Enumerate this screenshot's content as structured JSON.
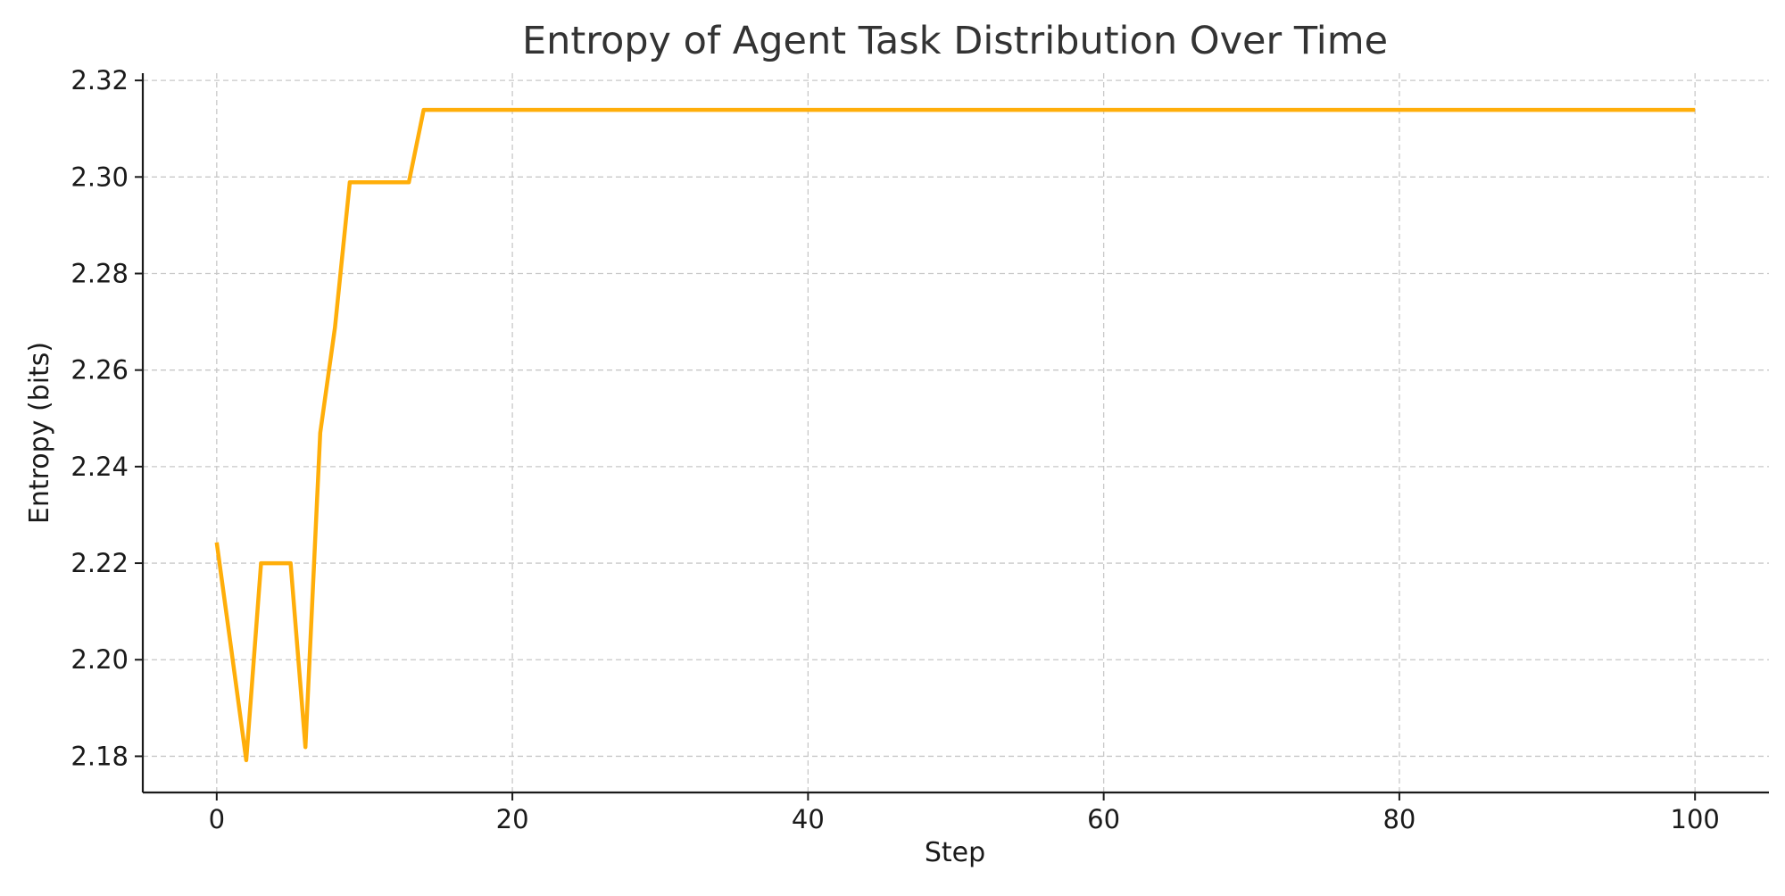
{
  "chart_data": {
    "type": "line",
    "title": "Entropy of Agent Task Distribution Over Time",
    "xlabel": "Step",
    "ylabel": "Entropy (bits)",
    "xlim": [
      -5,
      105
    ],
    "ylim": [
      2.1725,
      2.3215
    ],
    "x_ticks": [
      0,
      20,
      40,
      60,
      80,
      100
    ],
    "y_ticks": [
      2.18,
      2.2,
      2.22,
      2.24,
      2.26,
      2.28,
      2.3,
      2.32
    ],
    "x_tick_labels": [
      "0",
      "20",
      "40",
      "60",
      "80",
      "100"
    ],
    "y_tick_labels": [
      "2.18",
      "2.20",
      "2.22",
      "2.24",
      "2.26",
      "2.28",
      "2.30",
      "2.32"
    ],
    "grid": true,
    "series": [
      {
        "color": "#ffae0a",
        "x": [
          0,
          1,
          2,
          3,
          4,
          5,
          6,
          7,
          8,
          9,
          10,
          11,
          12,
          13,
          14,
          15,
          20,
          30,
          40,
          50,
          60,
          70,
          80,
          90,
          100
        ],
        "y": [
          2.2243,
          2.2018,
          2.1792,
          2.22,
          2.22,
          2.22,
          2.1819,
          2.247,
          2.2688,
          2.2989,
          2.2989,
          2.2989,
          2.2989,
          2.2989,
          2.3139,
          2.3139,
          2.3139,
          2.3139,
          2.3139,
          2.3139,
          2.3139,
          2.3139,
          2.3139,
          2.3139,
          2.3139
        ]
      }
    ]
  }
}
